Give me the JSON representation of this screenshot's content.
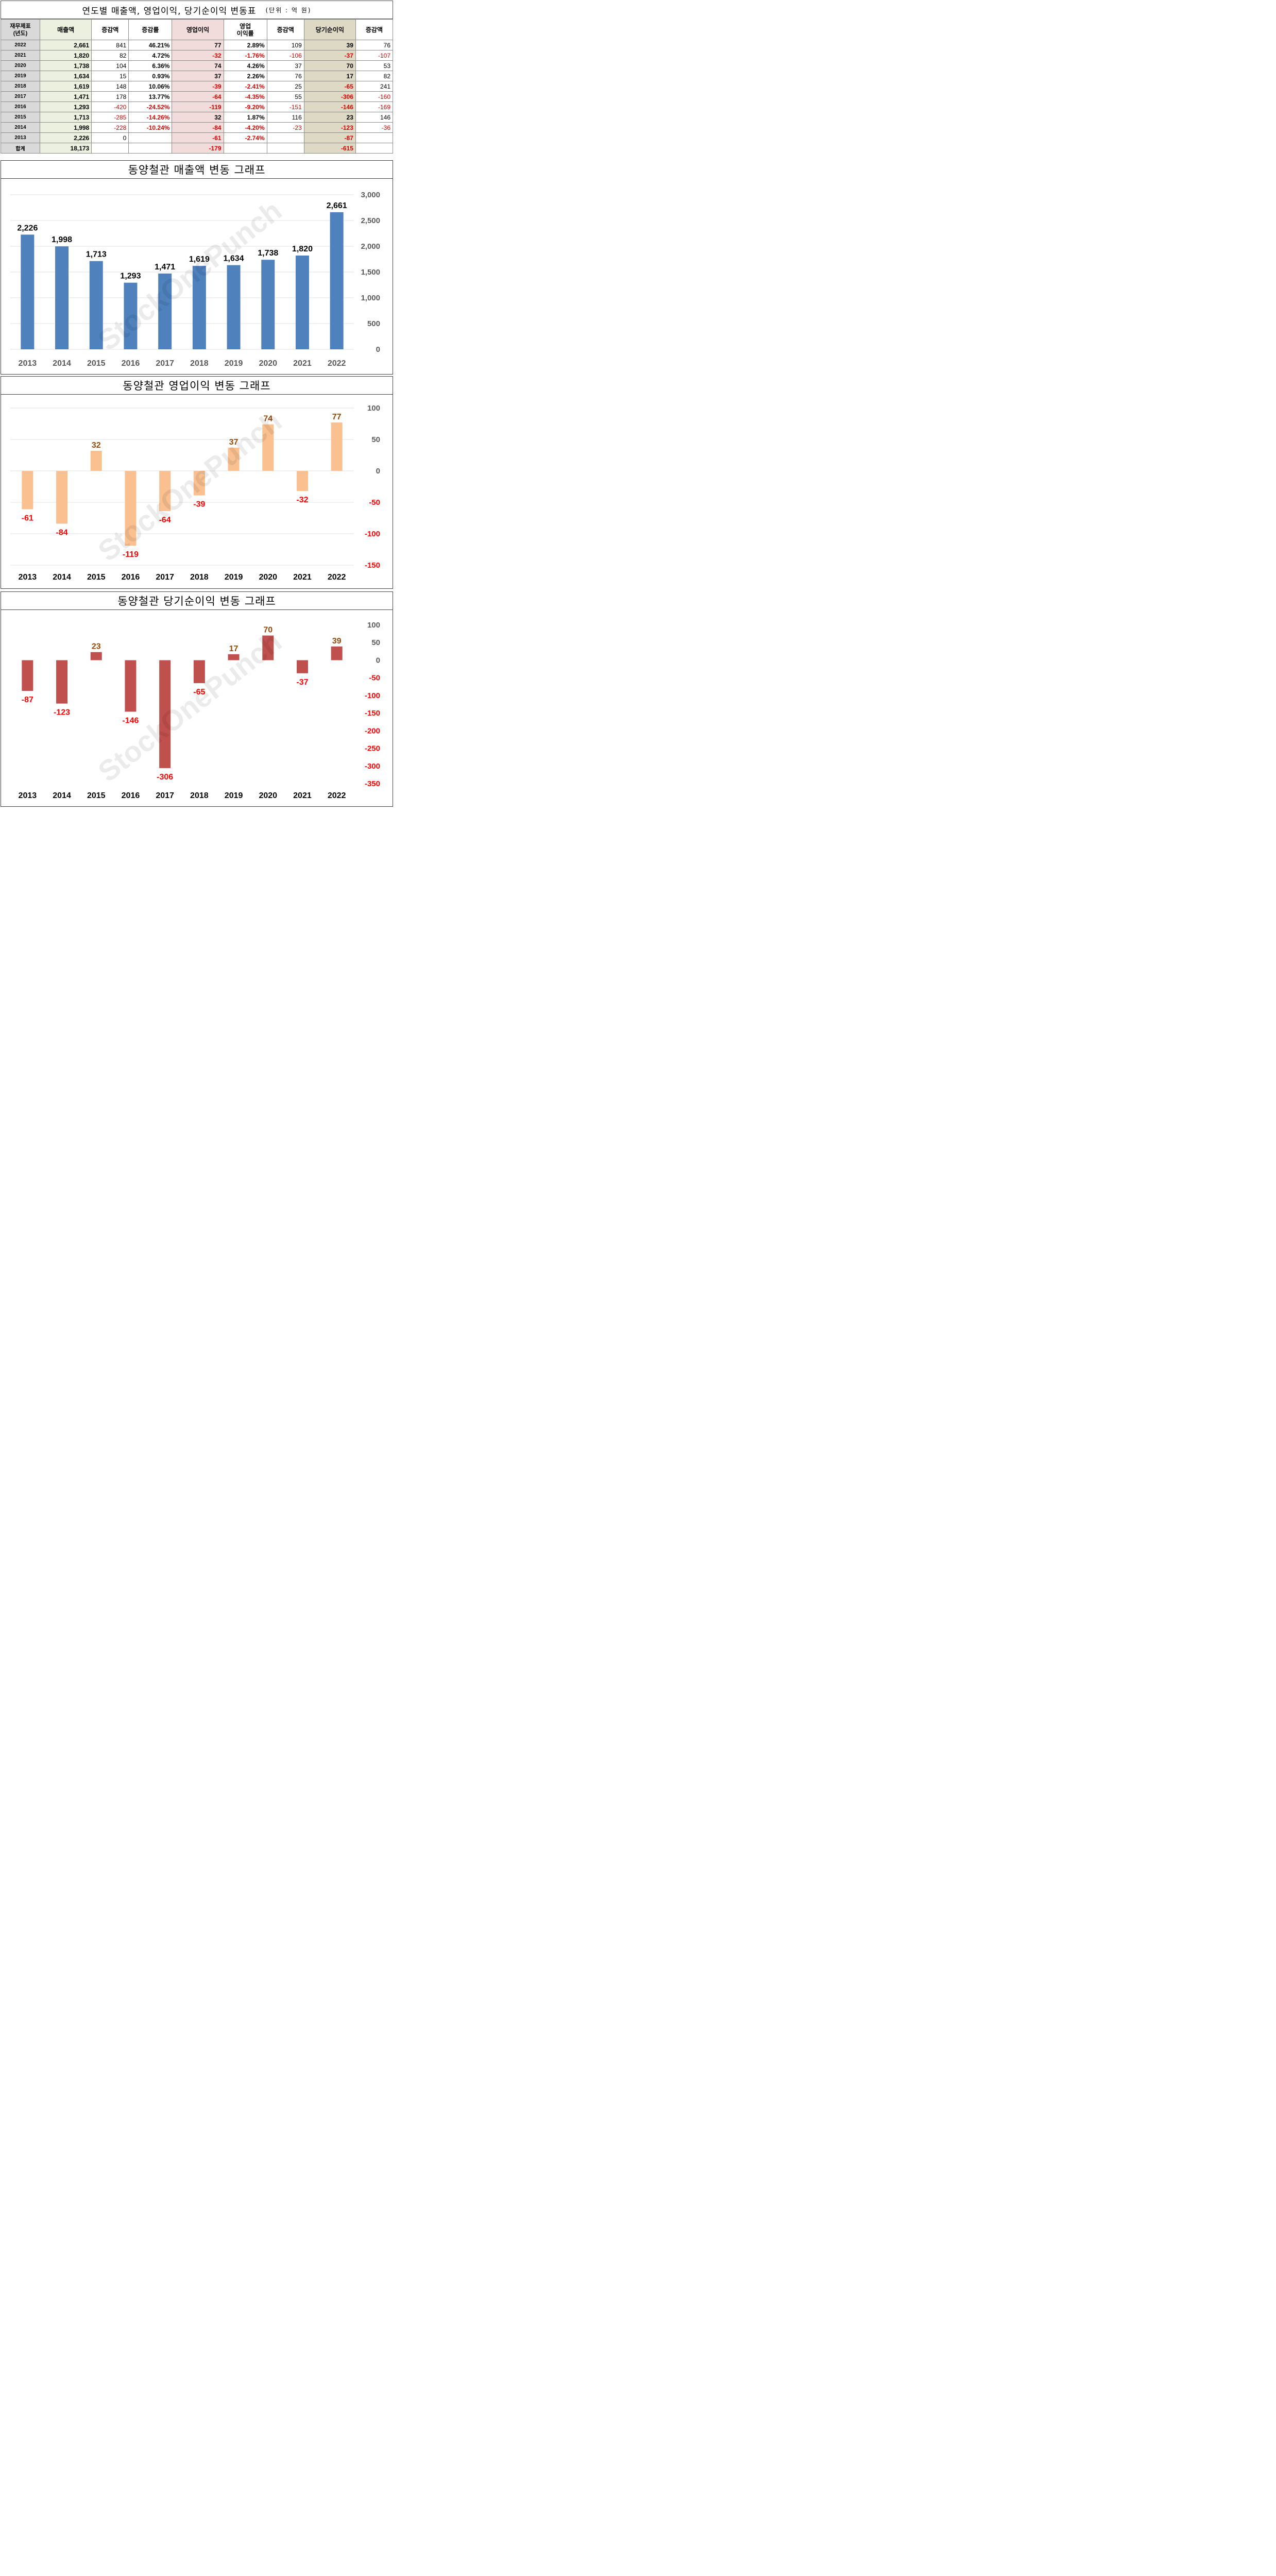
{
  "table": {
    "title": "연도별 매출액, 영업이익, 당기순이익 변동표",
    "unit": "(단위 : 억 원)",
    "headers": {
      "year": "재무제표\n(년도)",
      "sales": "매출액",
      "sales_chg": "증감액",
      "sales_rate": "증감률",
      "op": "영업이익",
      "op_margin": "영업\n이익률",
      "op_chg": "증감액",
      "net": "당기순이익",
      "net_chg": "증감액"
    },
    "rows": [
      {
        "year": "2022",
        "sales": "2,661",
        "sales_chg": "841",
        "sales_rate": "46.21%",
        "op": "77",
        "op_margin": "2.89%",
        "op_chg": "109",
        "net": "39",
        "net_chg": "76"
      },
      {
        "year": "2021",
        "sales": "1,820",
        "sales_chg": "82",
        "sales_rate": "4.72%",
        "op": "-32",
        "op_margin": "-1.76%",
        "op_chg": "-106",
        "net": "-37",
        "net_chg": "-107"
      },
      {
        "year": "2020",
        "sales": "1,738",
        "sales_chg": "104",
        "sales_rate": "6.36%",
        "op": "74",
        "op_margin": "4.26%",
        "op_chg": "37",
        "net": "70",
        "net_chg": "53"
      },
      {
        "year": "2019",
        "sales": "1,634",
        "sales_chg": "15",
        "sales_rate": "0.93%",
        "op": "37",
        "op_margin": "2.26%",
        "op_chg": "76",
        "net": "17",
        "net_chg": "82"
      },
      {
        "year": "2018",
        "sales": "1,619",
        "sales_chg": "148",
        "sales_rate": "10.06%",
        "op": "-39",
        "op_margin": "-2.41%",
        "op_chg": "25",
        "net": "-65",
        "net_chg": "241"
      },
      {
        "year": "2017",
        "sales": "1,471",
        "sales_chg": "178",
        "sales_rate": "13.77%",
        "op": "-64",
        "op_margin": "-4.35%",
        "op_chg": "55",
        "net": "-306",
        "net_chg": "-160"
      },
      {
        "year": "2016",
        "sales": "1,293",
        "sales_chg": "-420",
        "sales_rate": "-24.52%",
        "op": "-119",
        "op_margin": "-9.20%",
        "op_chg": "-151",
        "net": "-146",
        "net_chg": "-169"
      },
      {
        "year": "2015",
        "sales": "1,713",
        "sales_chg": "-285",
        "sales_rate": "-14.26%",
        "op": "32",
        "op_margin": "1.87%",
        "op_chg": "116",
        "net": "23",
        "net_chg": "146"
      },
      {
        "year": "2014",
        "sales": "1,998",
        "sales_chg": "-228",
        "sales_rate": "-10.24%",
        "op": "-84",
        "op_margin": "-4.20%",
        "op_chg": "-23",
        "net": "-123",
        "net_chg": "-36"
      },
      {
        "year": "2013",
        "sales": "2,226",
        "sales_chg": "0",
        "sales_rate": "",
        "op": "-61",
        "op_margin": "-2.74%",
        "op_chg": "",
        "net": "-87",
        "net_chg": ""
      }
    ],
    "total": {
      "year": "합계",
      "sales": "18,173",
      "op": "-179",
      "net": "-615"
    }
  },
  "watermark": "StockOnePunch",
  "colors": {
    "sales_bar": "#4f81bd",
    "op_bar": "#fac090",
    "net_bar": "#c0504d",
    "pos_label": "#974806",
    "neg_label": "#ff0000",
    "sales_header_bg": "#ebf1de",
    "op_header_bg": "#f2dcdb",
    "net_header_bg": "#ddd9c4"
  },
  "chart_data": [
    {
      "type": "bar",
      "title": "동양철관 매출액 변동 그래프",
      "categories": [
        "2013",
        "2014",
        "2015",
        "2016",
        "2017",
        "2018",
        "2019",
        "2020",
        "2021",
        "2022"
      ],
      "values": [
        2226,
        1998,
        1713,
        1293,
        1471,
        1619,
        1634,
        1738,
        1820,
        2661
      ],
      "labels": [
        "2,226",
        "1,998",
        "1,713",
        "1,293",
        "1,471",
        "1,619",
        "1,634",
        "1,738",
        "1,820",
        "2,661"
      ],
      "ylim": [
        0,
        3000
      ],
      "yticks": [
        "0",
        "500",
        "1,000",
        "1,500",
        "2,000",
        "2,500",
        "3,000"
      ],
      "ytick_values": [
        0,
        500,
        1000,
        1500,
        2000,
        2500,
        3000
      ],
      "grid": true,
      "yaxis_side": "right"
    },
    {
      "type": "bar",
      "title": "동양철관 영업이익 변동 그래프",
      "categories": [
        "2013",
        "2014",
        "2015",
        "2016",
        "2017",
        "2018",
        "2019",
        "2020",
        "2021",
        "2022"
      ],
      "values": [
        -61,
        -84,
        32,
        -119,
        -64,
        -39,
        37,
        74,
        -32,
        77
      ],
      "labels": [
        "-61",
        "-84",
        "32",
        "-119",
        "-64",
        "-39",
        "37",
        "74",
        "-32",
        "77"
      ],
      "ylim": [
        -150,
        100
      ],
      "yticks": [
        "-150",
        "-100",
        "-50",
        "0",
        "50",
        "100"
      ],
      "ytick_values": [
        -150,
        -100,
        -50,
        0,
        50,
        100
      ],
      "grid": true,
      "yaxis_side": "right"
    },
    {
      "type": "bar",
      "title": "동양철관 당기순이익 변동 그래프",
      "categories": [
        "2013",
        "2014",
        "2015",
        "2016",
        "2017",
        "2018",
        "2019",
        "2020",
        "2021",
        "2022"
      ],
      "values": [
        -87,
        -123,
        23,
        -146,
        -306,
        -65,
        17,
        70,
        -37,
        39
      ],
      "labels": [
        "-87",
        "-123",
        "23",
        "-146",
        "-306",
        "-65",
        "17",
        "70",
        "-37",
        "39"
      ],
      "ylim": [
        -350,
        100
      ],
      "yticks": [
        "-350",
        "-300",
        "-250",
        "-200",
        "-150",
        "-100",
        "-50",
        "0",
        "50",
        "100"
      ],
      "ytick_values": [
        -350,
        -300,
        -250,
        -200,
        -150,
        -100,
        -50,
        0,
        50,
        100
      ],
      "grid": false,
      "yaxis_side": "right"
    }
  ]
}
